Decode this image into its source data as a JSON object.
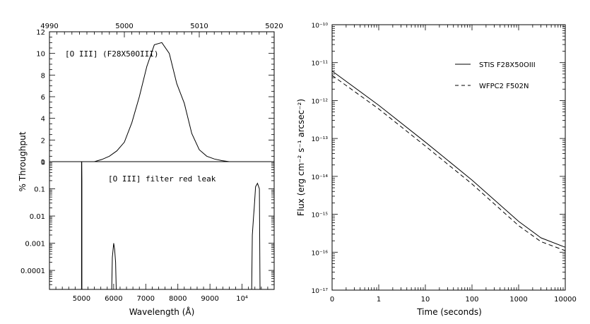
{
  "chart_data": [
    {
      "type": "line",
      "panel": "left",
      "ylabel": "% Throughput",
      "xlabel": "Wavelength (Å)",
      "top_axis": {
        "ticks": [
          4990,
          5000,
          5010,
          5020
        ],
        "labels": [
          "4990",
          "5000",
          "5010",
          "5020"
        ]
      },
      "bottom_axis": {
        "ticks": [
          5000,
          6000,
          7000,
          8000,
          9000,
          10000
        ],
        "labels": [
          "5000",
          "6000",
          "7000",
          "8000",
          "9000",
          "10⁴"
        ]
      },
      "upper_panel": {
        "annotation": "[O III] (F28X50OIII)",
        "ylim": [
          0,
          12
        ],
        "yticks": [
          0,
          2,
          4,
          6,
          8,
          10,
          12
        ],
        "ytick_labels": [
          "0",
          "2",
          "4",
          "6",
          "8",
          "10",
          "12"
        ],
        "x_axis": "top",
        "series": [
          {
            "x": [
              4990,
              4996,
              4997,
              4998,
              4999,
              5000,
              5001,
              5002,
              5003,
              5004,
              5005,
              5006,
              5007,
              5008,
              5009,
              5010,
              5011,
              5012,
              5013,
              5014,
              5020
            ],
            "values": [
              0,
              0,
              0.2,
              0.5,
              1.0,
              1.8,
              3.6,
              6.0,
              8.8,
              10.8,
              11.0,
              10.0,
              7.2,
              5.4,
              2.6,
              1.1,
              0.5,
              0.25,
              0.1,
              0,
              0
            ]
          }
        ]
      },
      "lower_panel": {
        "annotation": "[O III] filter red leak",
        "scale": "log",
        "ylim": [
          2e-05,
          1
        ],
        "yticks": [
          1,
          0.1,
          0.01,
          0.001,
          0.0001
        ],
        "ytick_labels": [
          "1",
          "0.1",
          "0.01",
          "0.001",
          "0.0001"
        ],
        "x_axis": "bottom",
        "series": [
          {
            "segments": [
              {
                "x": [
                  5000,
                  5000,
                  5005,
                  5010,
                  5010
                ],
                "values": [
                  2e-05,
                  1,
                  1,
                  0.2,
                  2e-05
                ]
              },
              {
                "x": [
                  5940,
                  5960,
                  6000,
                  6030,
                  6060,
                  6080
                ],
                "values": [
                  2e-05,
                  0.0003,
                  0.001,
                  0.0006,
                  0.0002,
                  2e-05
                ]
              },
              {
                "x": [
                  10300,
                  10320,
                  10360,
                  10380,
                  10420,
                  10480,
                  10540,
                  10560
                ],
                "values": [
                  2e-05,
                  0.002,
                  0.01,
                  0.02,
                  0.12,
                  0.16,
                  0.1,
                  2e-05
                ]
              }
            ]
          }
        ]
      }
    },
    {
      "type": "line",
      "panel": "right",
      "xlabel": "Time (seconds)",
      "ylabel": "Flux (erg cm⁻² s⁻¹ arcsec⁻²)",
      "x_scale": "log",
      "y_scale": "log",
      "xlim": [
        0.1,
        10000
      ],
      "ylim": [
        1e-17,
        1e-10
      ],
      "xticks": [
        0.1,
        1,
        10,
        100,
        1000,
        10000
      ],
      "xtick_labels": [
        "0",
        "1",
        "10",
        "100",
        "1000",
        "10000"
      ],
      "yticks": [
        1e-10,
        1e-11,
        1e-12,
        1e-13,
        1e-14,
        1e-15,
        1e-16,
        1e-17
      ],
      "ytick_labels": [
        "10⁻¹⁰",
        "10⁻¹¹",
        "10⁻¹²",
        "10⁻¹³",
        "10⁻¹⁴",
        "10⁻¹⁵",
        "10⁻¹⁶",
        "10⁻¹⁷"
      ],
      "legend": "top-right",
      "series": [
        {
          "name": "STIS F28X50OIII",
          "style": "solid",
          "x": [
            0.1,
            1,
            10,
            100,
            1000,
            3000,
            10000
          ],
          "values": [
            6e-12,
            7.5e-13,
            8e-14,
            8e-15,
            6.5e-16,
            2.4e-16,
            1.35e-16
          ]
        },
        {
          "name": "WFPC2 F502N",
          "style": "dashed",
          "x": [
            0.1,
            1,
            10,
            100,
            1000,
            3000,
            10000
          ],
          "values": [
            4.6e-12,
            6e-13,
            6.3e-14,
            6.3e-15,
            5e-16,
            1.9e-16,
            1.1e-16
          ]
        }
      ]
    }
  ]
}
